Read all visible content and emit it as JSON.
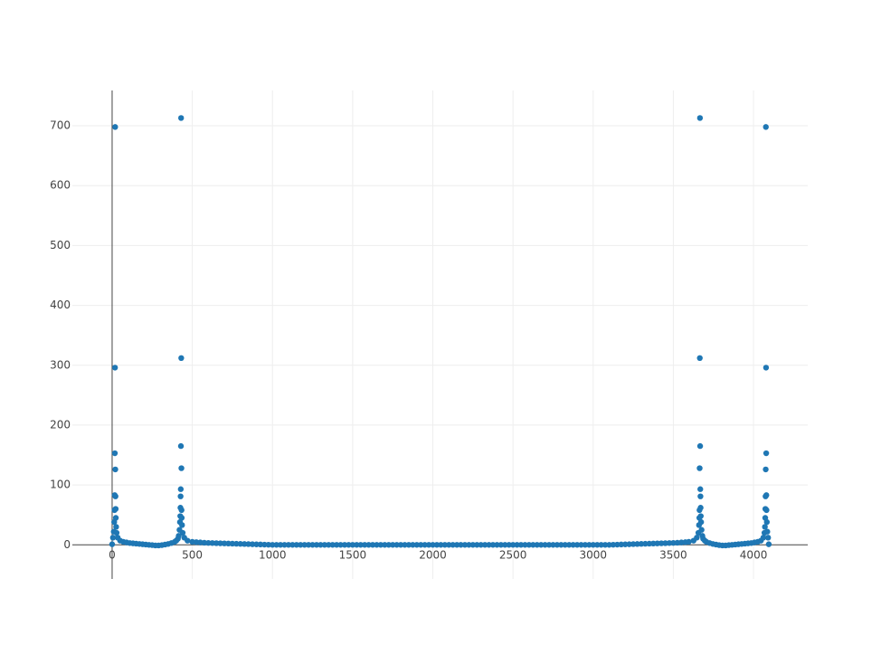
{
  "chart_data": {
    "type": "scatter",
    "color": "#1f77b4",
    "grid": true,
    "xlim": [
      -248,
      4338
    ],
    "ylim": [
      -57,
      759
    ],
    "xticks": [
      0,
      500,
      1000,
      1500,
      2000,
      2500,
      3000,
      3500,
      4000
    ],
    "yticks": [
      0,
      100,
      200,
      300,
      400,
      500,
      600,
      700
    ],
    "x": [
      0,
      5,
      10,
      13,
      15,
      16,
      17,
      18,
      19,
      20,
      21,
      22,
      23,
      25,
      28,
      35,
      50,
      70,
      90,
      110,
      130,
      150,
      170,
      190,
      210,
      230,
      250,
      270,
      290,
      310,
      330,
      350,
      370,
      390,
      400,
      410,
      415,
      420,
      423,
      425,
      426,
      427,
      428,
      429,
      430,
      431,
      432,
      433,
      434,
      436,
      440,
      450,
      470,
      500,
      525,
      550,
      575,
      600,
      625,
      650,
      675,
      700,
      725,
      750,
      775,
      800,
      825,
      850,
      875,
      900,
      925,
      950,
      975,
      1000,
      1025,
      1050,
      1075,
      1100,
      1125,
      1150,
      1175,
      1200,
      1225,
      1250,
      1275,
      1300,
      1325,
      1350,
      1375,
      1400,
      1425,
      1450,
      1475,
      1500,
      1525,
      1550,
      1575,
      1600,
      1625,
      1650,
      1675,
      1700,
      1725,
      1750,
      1775,
      1800,
      1825,
      1850,
      1875,
      1900,
      1925,
      1950,
      1975,
      2000,
      2025,
      2050,
      2075,
      2100,
      2125,
      2150,
      2175,
      2200,
      2225,
      2250,
      2275,
      2300,
      2325,
      2350,
      2375,
      2400,
      2425,
      2450,
      2475,
      2500,
      2525,
      2550,
      2575,
      2600,
      2625,
      2650,
      2675,
      2700,
      2725,
      2750,
      2775,
      2800,
      2825,
      2850,
      2875,
      2900,
      2925,
      2950,
      2975,
      3000,
      3025,
      3050,
      3075,
      3100,
      3125,
      3150,
      3175,
      3200,
      3225,
      3250,
      3275,
      3300,
      3325,
      3350,
      3375,
      3400,
      3425,
      3450,
      3475,
      3500,
      3525,
      3550,
      3575,
      3596,
      3626,
      3646,
      3656,
      3660,
      3662,
      3663,
      3664,
      3665,
      3666,
      3667,
      3668,
      3669,
      3670,
      3671,
      3673,
      3676,
      3681,
      3686,
      3696,
      3706,
      3726,
      3746,
      3766,
      3786,
      3806,
      3826,
      3846,
      3866,
      3886,
      3906,
      3926,
      3946,
      3966,
      3986,
      4006,
      4026,
      4046,
      4061,
      4068,
      4071,
      4073,
      4074,
      4075,
      4076,
      4077,
      4078,
      4079,
      4080,
      4081,
      4083,
      4086,
      4091,
      4095
    ],
    "values": [
      1,
      12,
      22,
      38,
      58,
      83,
      153,
      296,
      698,
      126,
      81,
      60,
      45,
      30,
      20,
      12,
      7,
      5,
      4,
      3,
      2.5,
      2,
      1.5,
      1,
      0.5,
      0,
      -0.5,
      -1,
      -1,
      -0.5,
      0.5,
      1.5,
      3,
      5,
      7,
      10,
      15,
      25,
      38,
      48,
      62,
      81,
      93,
      165,
      713,
      312,
      128,
      58,
      45,
      33,
      20,
      12,
      7,
      5,
      4.5,
      4,
      3.5,
      3.2,
      3,
      2.8,
      2.6,
      2.4,
      2.2,
      2,
      1.8,
      1.6,
      1.4,
      1.2,
      1,
      0.8,
      0.6,
      0.4,
      0.2,
      0,
      0,
      0,
      0,
      0,
      0,
      0,
      0,
      0,
      0,
      0,
      0,
      0,
      0,
      0,
      0,
      0,
      0,
      0,
      0,
      0,
      0,
      0,
      0,
      0,
      0,
      0,
      0,
      0,
      0,
      0,
      0,
      0,
      0,
      0,
      0,
      0,
      0,
      0,
      0,
      0,
      0,
      0,
      0,
      0,
      0,
      0,
      0,
      0,
      0,
      0,
      0,
      0,
      0,
      0,
      0,
      0,
      0,
      0,
      0,
      0,
      0,
      0,
      0,
      0,
      0,
      0,
      0,
      0,
      0,
      0,
      0,
      0,
      0,
      0,
      0,
      0,
      0,
      0,
      0,
      0,
      0,
      0,
      0,
      0,
      0.2,
      0.4,
      0.6,
      0.8,
      1,
      1.2,
      1.4,
      1.6,
      1.8,
      2,
      2.2,
      2.4,
      2.6,
      2.8,
      3,
      3.2,
      3.5,
      4,
      4.5,
      5,
      7,
      12,
      20,
      33,
      45,
      58,
      128,
      312,
      713,
      165,
      93,
      81,
      62,
      48,
      38,
      25,
      15,
      10,
      7,
      5,
      3,
      1.5,
      0.5,
      -0.5,
      -1,
      -1,
      -0.5,
      0,
      0.5,
      1,
      1.5,
      2,
      2.5,
      3,
      4,
      5,
      7,
      12,
      20,
      30,
      45,
      60,
      81,
      126,
      698,
      296,
      153,
      83,
      58,
      38,
      22,
      12,
      1
    ]
  }
}
